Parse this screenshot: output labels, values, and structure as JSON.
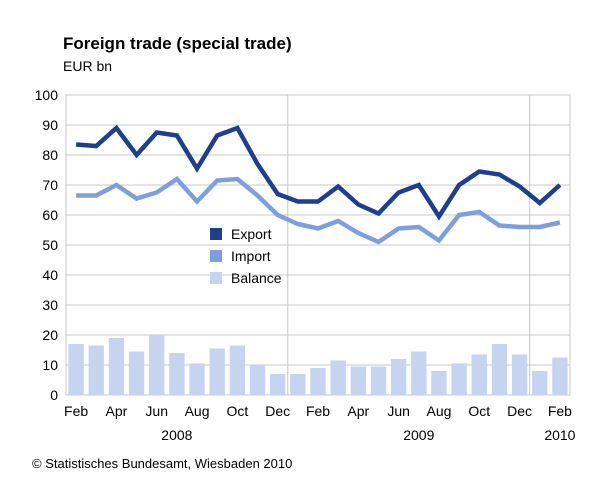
{
  "header": {
    "title": "Foreign trade (special trade)",
    "subtitle": "EUR bn"
  },
  "footer": {
    "credit": "© Statistisches Bundesamt, Wiesbaden 2010"
  },
  "chart_data": {
    "type": "line",
    "title": "Foreign trade (special trade)",
    "unit": "EUR bn",
    "ylim": [
      0,
      100
    ],
    "y_ticks": [
      0,
      10,
      20,
      30,
      40,
      50,
      60,
      70,
      80,
      90,
      100
    ],
    "grid": true,
    "legend_position": "center-left",
    "categories": [
      "Feb 2008",
      "Mar 2008",
      "Apr 2008",
      "May 2008",
      "Jun 2008",
      "Jul 2008",
      "Aug 2008",
      "Sep 2008",
      "Oct 2008",
      "Nov 2008",
      "Dec 2008",
      "Jan 2009",
      "Feb 2009",
      "Mar 2009",
      "Apr 2009",
      "May 2009",
      "Jun 2009",
      "Jul 2009",
      "Aug 2009",
      "Sep 2009",
      "Oct 2009",
      "Nov 2009",
      "Dec 2009",
      "Jan 2010",
      "Feb 2010"
    ],
    "x_tick_labels": [
      {
        "index": 0,
        "label": "Feb"
      },
      {
        "index": 2,
        "label": "Apr"
      },
      {
        "index": 4,
        "label": "Jun"
      },
      {
        "index": 6,
        "label": "Aug"
      },
      {
        "index": 8,
        "label": "Oct"
      },
      {
        "index": 10,
        "label": "Dec"
      },
      {
        "index": 12,
        "label": "Feb"
      },
      {
        "index": 14,
        "label": "Apr"
      },
      {
        "index": 16,
        "label": "Jun"
      },
      {
        "index": 18,
        "label": "Aug"
      },
      {
        "index": 20,
        "label": "Oct"
      },
      {
        "index": 22,
        "label": "Dec"
      },
      {
        "index": 24,
        "label": "Feb"
      }
    ],
    "year_labels": [
      {
        "label": "2008",
        "center_index": 5
      },
      {
        "label": "2009",
        "center_index": 17
      },
      {
        "label": "2010",
        "center_index": 24
      }
    ],
    "year_dividers_after_index": [
      10.5,
      22.5
    ],
    "series": [
      {
        "name": "Export",
        "type": "line",
        "color": "#1f3f8c",
        "values": [
          83.5,
          83,
          89,
          80,
          87.5,
          86.5,
          75.5,
          86.5,
          89,
          77,
          67,
          64.5,
          64.5,
          69.5,
          63.5,
          60.5,
          67.5,
          70,
          59.5,
          70,
          74.5,
          73.5,
          69.5,
          64,
          70
        ]
      },
      {
        "name": "Import",
        "type": "line",
        "color": "#7f9fdc",
        "values": [
          66.5,
          66.5,
          70,
          65.5,
          67.5,
          72,
          64.5,
          71.5,
          72,
          66.5,
          60,
          57,
          55.5,
          58,
          54,
          51,
          55.5,
          56,
          51.5,
          60,
          61,
          56.5,
          56,
          56,
          57.5
        ]
      },
      {
        "name": "Balance",
        "type": "bar",
        "color": "#c6d4ef",
        "values": [
          17,
          16.5,
          19,
          14.5,
          20,
          14,
          10.5,
          15.5,
          16.5,
          10,
          7,
          7,
          9,
          11.5,
          9.5,
          9.5,
          12,
          14.5,
          8,
          10.5,
          13.5,
          17,
          13.5,
          8,
          12.5
        ]
      }
    ]
  }
}
